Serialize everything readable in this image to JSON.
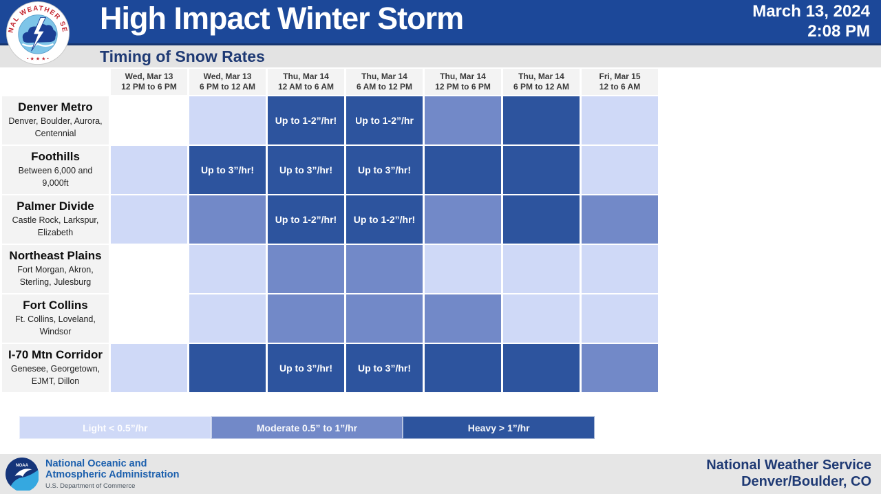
{
  "header": {
    "title": "High Impact Winter Storm",
    "subtitle": "Timing of Snow Rates",
    "date": "March 13, 2024",
    "time": "2:08 PM"
  },
  "colors": {
    "header_blue": "#1c4899",
    "band_gray": "#e3e3e3",
    "navy_text": "#1f3a74",
    "label_gray": "#f3f3f3",
    "levels": {
      "none": "#ffffff",
      "light": "#cfd9f7",
      "moderate": "#7289c8",
      "heavy": "#2d549e"
    }
  },
  "table": {
    "columns": [
      {
        "day": "Wed, Mar 13",
        "range": "12 PM to 6 PM"
      },
      {
        "day": "Wed, Mar 13",
        "range": "6 PM to 12 AM"
      },
      {
        "day": "Thu, Mar 14",
        "range": "12 AM to 6 AM"
      },
      {
        "day": "Thu, Mar 14",
        "range": "6 AM to 12 PM"
      },
      {
        "day": "Thu, Mar 14",
        "range": "12 PM to 6 PM"
      },
      {
        "day": "Thu, Mar 14",
        "range": "6 PM to 12 AM"
      },
      {
        "day": "Fri, Mar 15",
        "range": "12 to 6 AM"
      }
    ],
    "rows": [
      {
        "name": "Denver Metro",
        "sub": "Denver, Boulder, Aurora, Centennial",
        "cells": [
          {
            "level": "none",
            "label": ""
          },
          {
            "level": "light",
            "label": ""
          },
          {
            "level": "heavy",
            "label": "Up to 1-2”/hr!"
          },
          {
            "level": "heavy",
            "label": "Up to 1-2”/hr"
          },
          {
            "level": "moderate",
            "label": ""
          },
          {
            "level": "heavy",
            "label": ""
          },
          {
            "level": "light",
            "label": ""
          }
        ]
      },
      {
        "name": "Foothills",
        "sub": "Between 6,000 and 9,000ft",
        "cells": [
          {
            "level": "light",
            "label": ""
          },
          {
            "level": "heavy",
            "label": "Up to 3”/hr!"
          },
          {
            "level": "heavy",
            "label": "Up to 3”/hr!"
          },
          {
            "level": "heavy",
            "label": "Up to 3”/hr!"
          },
          {
            "level": "heavy",
            "label": ""
          },
          {
            "level": "heavy",
            "label": ""
          },
          {
            "level": "light",
            "label": ""
          }
        ]
      },
      {
        "name": "Palmer Divide",
        "sub": "Castle Rock, Larkspur, Elizabeth",
        "cells": [
          {
            "level": "light",
            "label": ""
          },
          {
            "level": "moderate",
            "label": ""
          },
          {
            "level": "heavy",
            "label": "Up to 1-2”/hr!"
          },
          {
            "level": "heavy",
            "label": "Up to 1-2”/hr!"
          },
          {
            "level": "moderate",
            "label": ""
          },
          {
            "level": "heavy",
            "label": ""
          },
          {
            "level": "moderate",
            "label": ""
          }
        ]
      },
      {
        "name": "Northeast Plains",
        "sub": "Fort Morgan, Akron, Sterling, Julesburg",
        "cells": [
          {
            "level": "none",
            "label": ""
          },
          {
            "level": "light",
            "label": ""
          },
          {
            "level": "moderate",
            "label": ""
          },
          {
            "level": "moderate",
            "label": ""
          },
          {
            "level": "light",
            "label": ""
          },
          {
            "level": "light",
            "label": ""
          },
          {
            "level": "light",
            "label": ""
          }
        ]
      },
      {
        "name": "Fort Collins",
        "sub": "Ft. Collins, Loveland, Windsor",
        "cells": [
          {
            "level": "none",
            "label": ""
          },
          {
            "level": "light",
            "label": ""
          },
          {
            "level": "moderate",
            "label": ""
          },
          {
            "level": "moderate",
            "label": ""
          },
          {
            "level": "moderate",
            "label": ""
          },
          {
            "level": "light",
            "label": ""
          },
          {
            "level": "light",
            "label": ""
          }
        ]
      },
      {
        "name": "I-70 Mtn Corridor",
        "sub": "Genesee, Georgetown, EJMT, Dillon",
        "cells": [
          {
            "level": "light",
            "label": ""
          },
          {
            "level": "heavy",
            "label": ""
          },
          {
            "level": "heavy",
            "label": "Up to 3”/hr!"
          },
          {
            "level": "heavy",
            "label": "Up to 3”/hr!"
          },
          {
            "level": "heavy",
            "label": ""
          },
          {
            "level": "heavy",
            "label": ""
          },
          {
            "level": "moderate",
            "label": ""
          }
        ]
      }
    ]
  },
  "legend": {
    "items": [
      {
        "label": "Light < 0.5”/hr",
        "level": "light"
      },
      {
        "label": "Moderate 0.5” to 1”/hr",
        "level": "moderate"
      },
      {
        "label": "Heavy > 1”/hr",
        "level": "heavy"
      }
    ]
  },
  "footer": {
    "agency_line1": "National Oceanic and",
    "agency_line2": "Atmospheric Administration",
    "dept": "U.S. Department of Commerce",
    "office_line1": "National Weather Service",
    "office_line2": "Denver/Boulder, CO"
  },
  "chart_data": {
    "type": "heatmap",
    "title": "High Impact Winter Storm",
    "subtitle": "Timing of Snow Rates",
    "x_categories": [
      "Wed, Mar 13 12 PM to 6 PM",
      "Wed, Mar 13 6 PM to 12 AM",
      "Thu, Mar 14 12 AM to 6 AM",
      "Thu, Mar 14 6 AM to 12 PM",
      "Thu, Mar 14 12 PM to 6 PM",
      "Thu, Mar 14 6 PM to 12 AM",
      "Fri, Mar 15 12 to 6 AM"
    ],
    "y_categories": [
      "Denver Metro",
      "Foothills",
      "Palmer Divide",
      "Northeast Plains",
      "Fort Collins",
      "I-70 Mtn Corridor"
    ],
    "values": [
      [
        "none",
        "light",
        "heavy",
        "heavy",
        "moderate",
        "heavy",
        "light"
      ],
      [
        "light",
        "heavy",
        "heavy",
        "heavy",
        "heavy",
        "heavy",
        "light"
      ],
      [
        "light",
        "moderate",
        "heavy",
        "heavy",
        "moderate",
        "heavy",
        "moderate"
      ],
      [
        "none",
        "light",
        "moderate",
        "moderate",
        "light",
        "light",
        "light"
      ],
      [
        "none",
        "light",
        "moderate",
        "moderate",
        "moderate",
        "light",
        "light"
      ],
      [
        "light",
        "heavy",
        "heavy",
        "heavy",
        "heavy",
        "heavy",
        "moderate"
      ]
    ],
    "cell_annotations": [
      [
        "",
        "",
        "Up to 1-2”/hr!",
        "Up to 1-2”/hr",
        "",
        "",
        ""
      ],
      [
        "",
        "Up to 3”/hr!",
        "Up to 3”/hr!",
        "Up to 3”/hr!",
        "",
        "",
        ""
      ],
      [
        "",
        "",
        "Up to 1-2”/hr!",
        "Up to 1-2”/hr!",
        "",
        "",
        ""
      ],
      [
        "",
        "",
        "",
        "",
        "",
        "",
        ""
      ],
      [
        "",
        "",
        "",
        "",
        "",
        "",
        ""
      ],
      [
        "",
        "",
        "Up to 3”/hr!",
        "Up to 3”/hr!",
        "",
        "",
        ""
      ]
    ],
    "legend": [
      "Light < 0.5”/hr",
      "Moderate 0.5” to 1”/hr",
      "Heavy > 1”/hr"
    ],
    "legend_position": "bottom"
  }
}
